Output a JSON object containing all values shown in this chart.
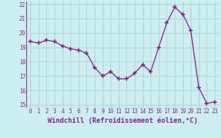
{
  "x": [
    0,
    1,
    2,
    3,
    4,
    5,
    6,
    7,
    8,
    9,
    10,
    11,
    12,
    13,
    14,
    15,
    16,
    17,
    18,
    19,
    20,
    21,
    22,
    23
  ],
  "y": [
    19.4,
    19.3,
    19.5,
    19.4,
    19.1,
    18.9,
    18.8,
    18.6,
    17.6,
    17.0,
    17.3,
    16.8,
    16.8,
    17.2,
    17.8,
    17.3,
    19.0,
    20.7,
    21.8,
    21.3,
    20.2,
    16.2,
    15.1,
    15.2
  ],
  "line_color": "#882288",
  "marker": "+",
  "marker_size": 4,
  "marker_lw": 1.2,
  "bg_color": "#cceeee",
  "grid_color": "#aacccc",
  "xlabel": "Windchill (Refroidissement éolien,°C)",
  "ylim": [
    14.8,
    22.2
  ],
  "xlim": [
    -0.5,
    23.5
  ],
  "yticks": [
    15,
    16,
    17,
    18,
    19,
    20,
    21,
    22
  ],
  "xticks": [
    0,
    1,
    2,
    3,
    4,
    5,
    6,
    7,
    8,
    9,
    10,
    11,
    12,
    13,
    14,
    15,
    16,
    17,
    18,
    19,
    20,
    21,
    22,
    23
  ],
  "xlabel_color": "#882288",
  "tick_color": "#882288",
  "tick_fontsize": 5.5,
  "label_fontsize": 7.0,
  "line_width": 1.0
}
